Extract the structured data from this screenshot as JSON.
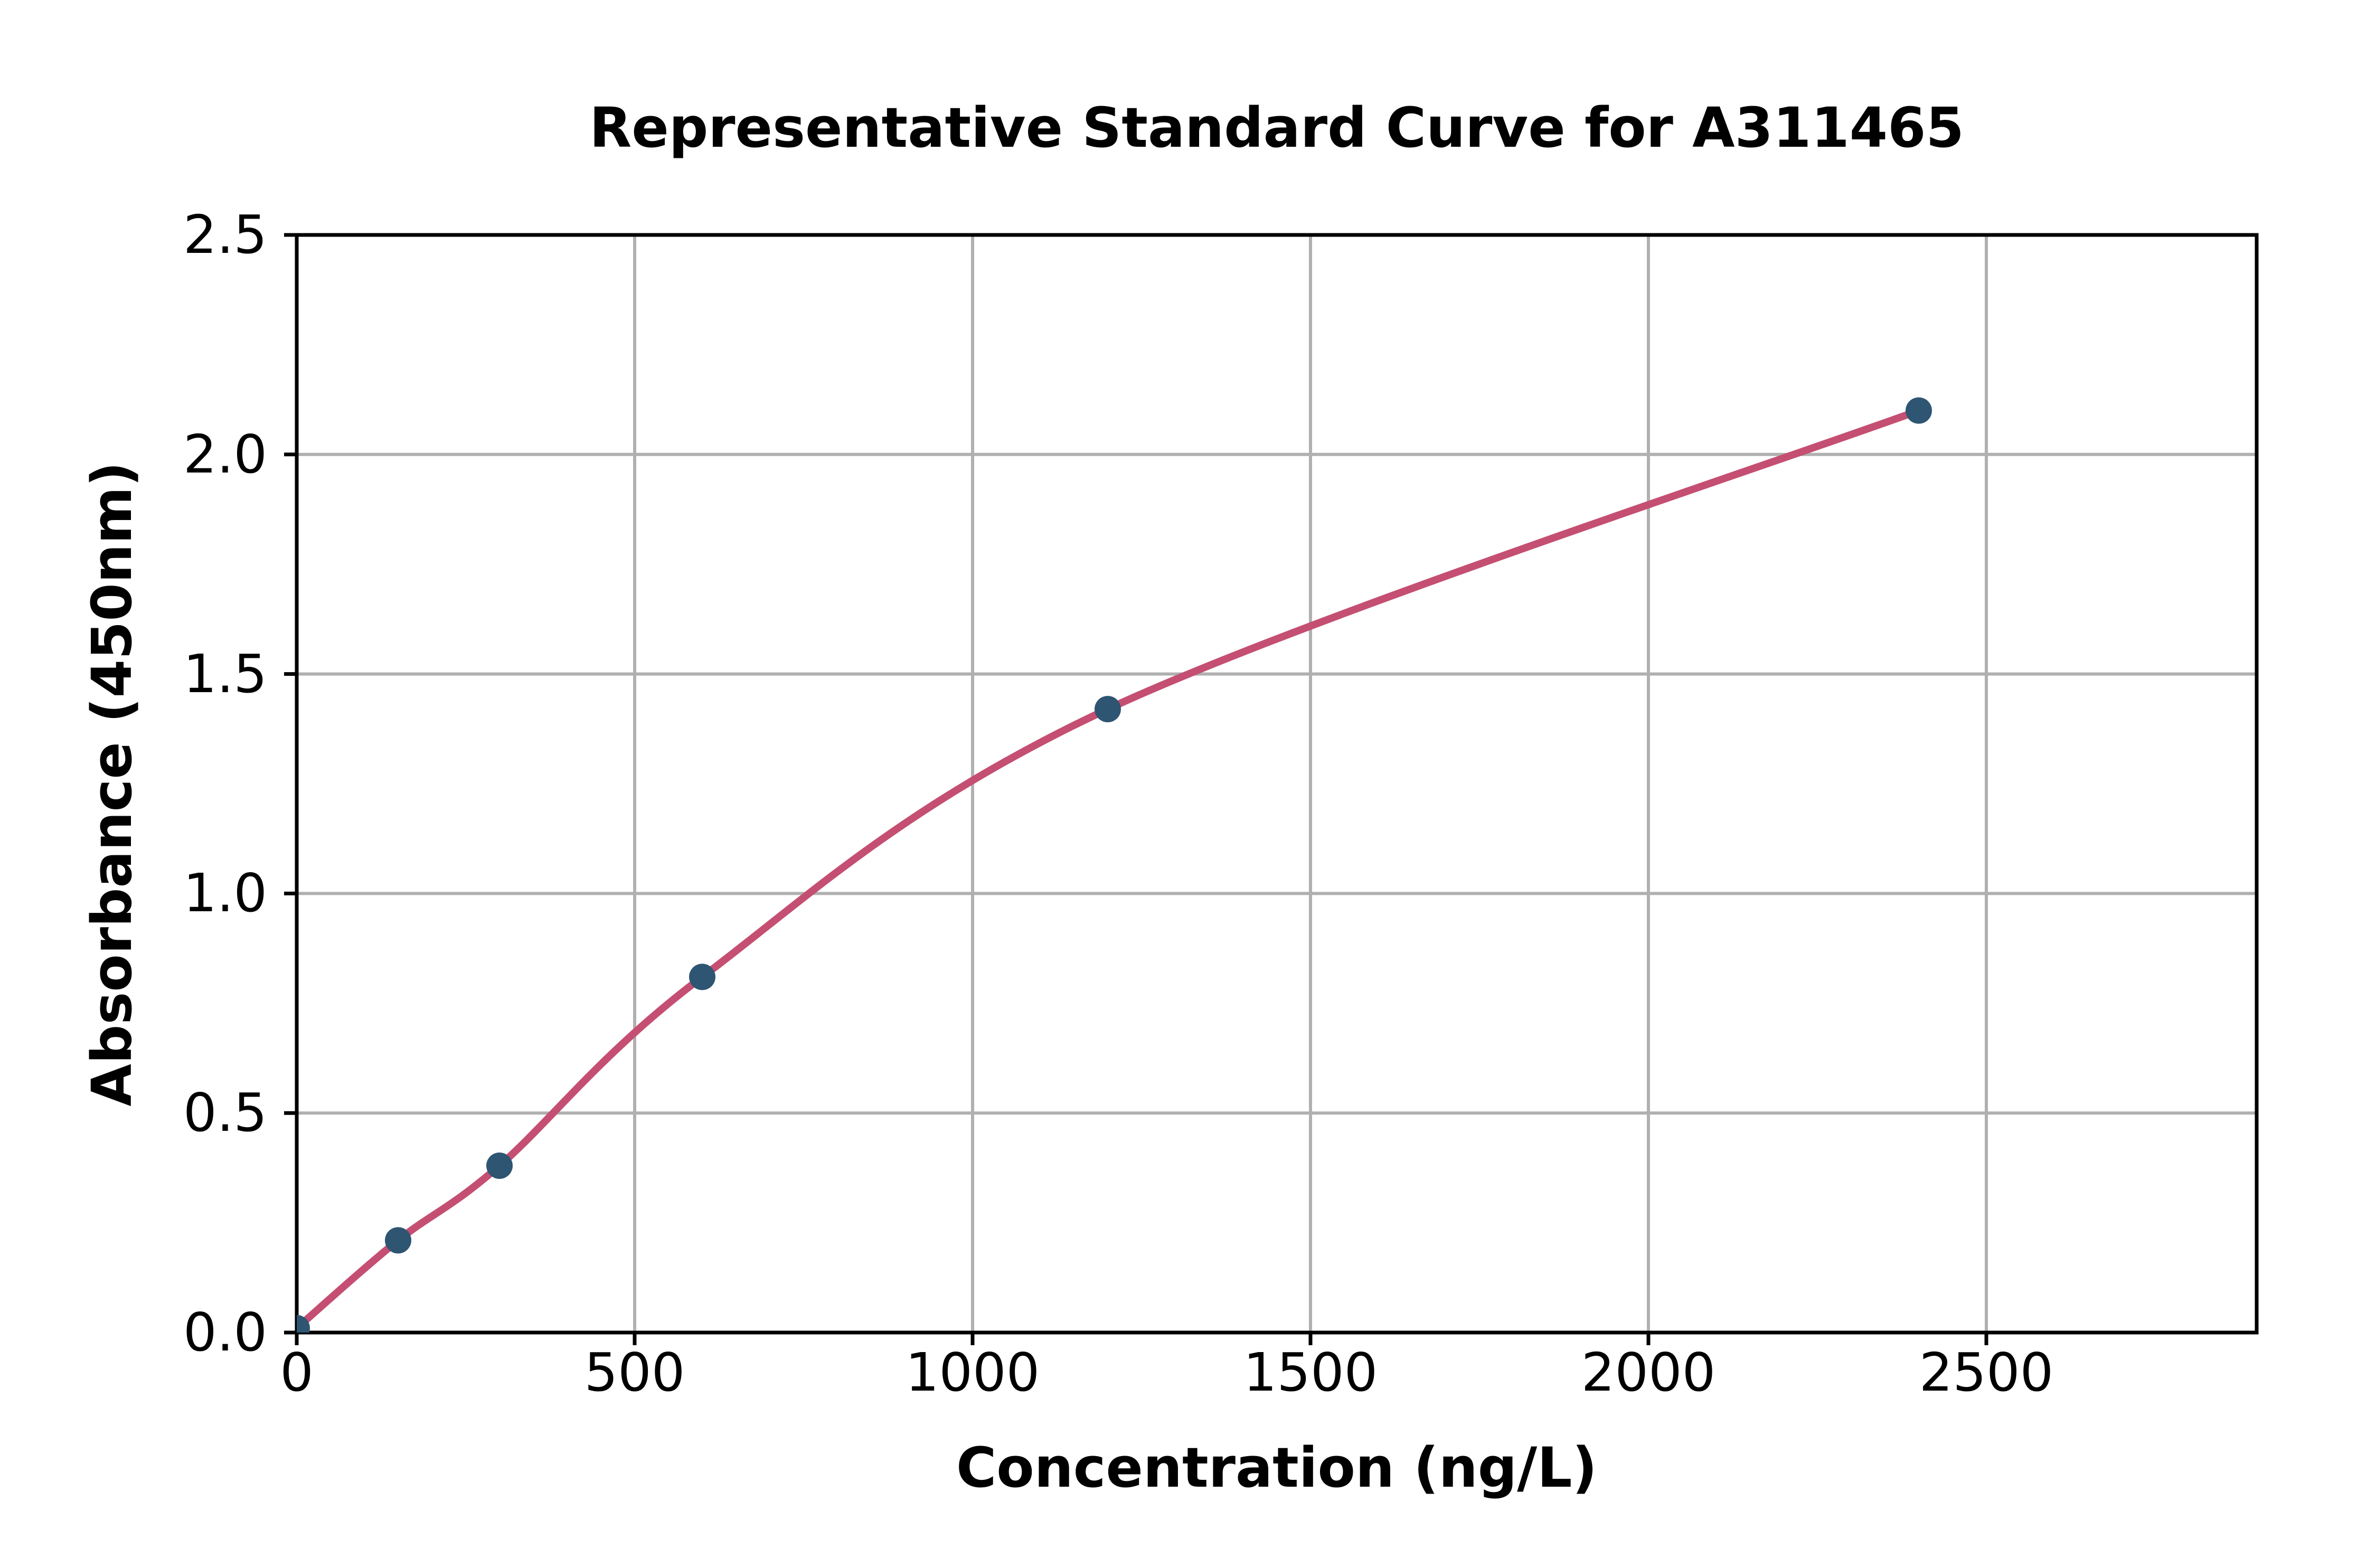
{
  "chart_data": {
    "type": "scatter",
    "title": "Representative Standard Curve for A311465",
    "xlabel": "Concentration (ng/L)",
    "ylabel": "Absorbance (450nm)",
    "x": [
      0,
      150,
      300,
      600,
      1200,
      2400
    ],
    "y": [
      0.01,
      0.21,
      0.38,
      0.81,
      1.42,
      2.1
    ],
    "fit_curve": "smooth saturating fit through all points, ends at last point",
    "xlim": [
      0,
      2900
    ],
    "ylim": [
      0,
      2.5
    ],
    "xticks": [
      0,
      500,
      1000,
      1500,
      2000,
      2500
    ],
    "xtick_labels": [
      "0",
      "500",
      "1000",
      "1500",
      "2000",
      "2500"
    ],
    "yticks": [
      0.0,
      0.5,
      1.0,
      1.5,
      2.0,
      2.5
    ],
    "ytick_labels": [
      "0.0",
      "0.5",
      "1.0",
      "1.5",
      "2.0",
      "2.5"
    ],
    "grid": true,
    "legend": null,
    "colors": {
      "marker": "#2e5572",
      "curve": "#c44f73",
      "grid": "#b0b0b0",
      "axis": "#000000",
      "background": "#ffffff"
    }
  }
}
